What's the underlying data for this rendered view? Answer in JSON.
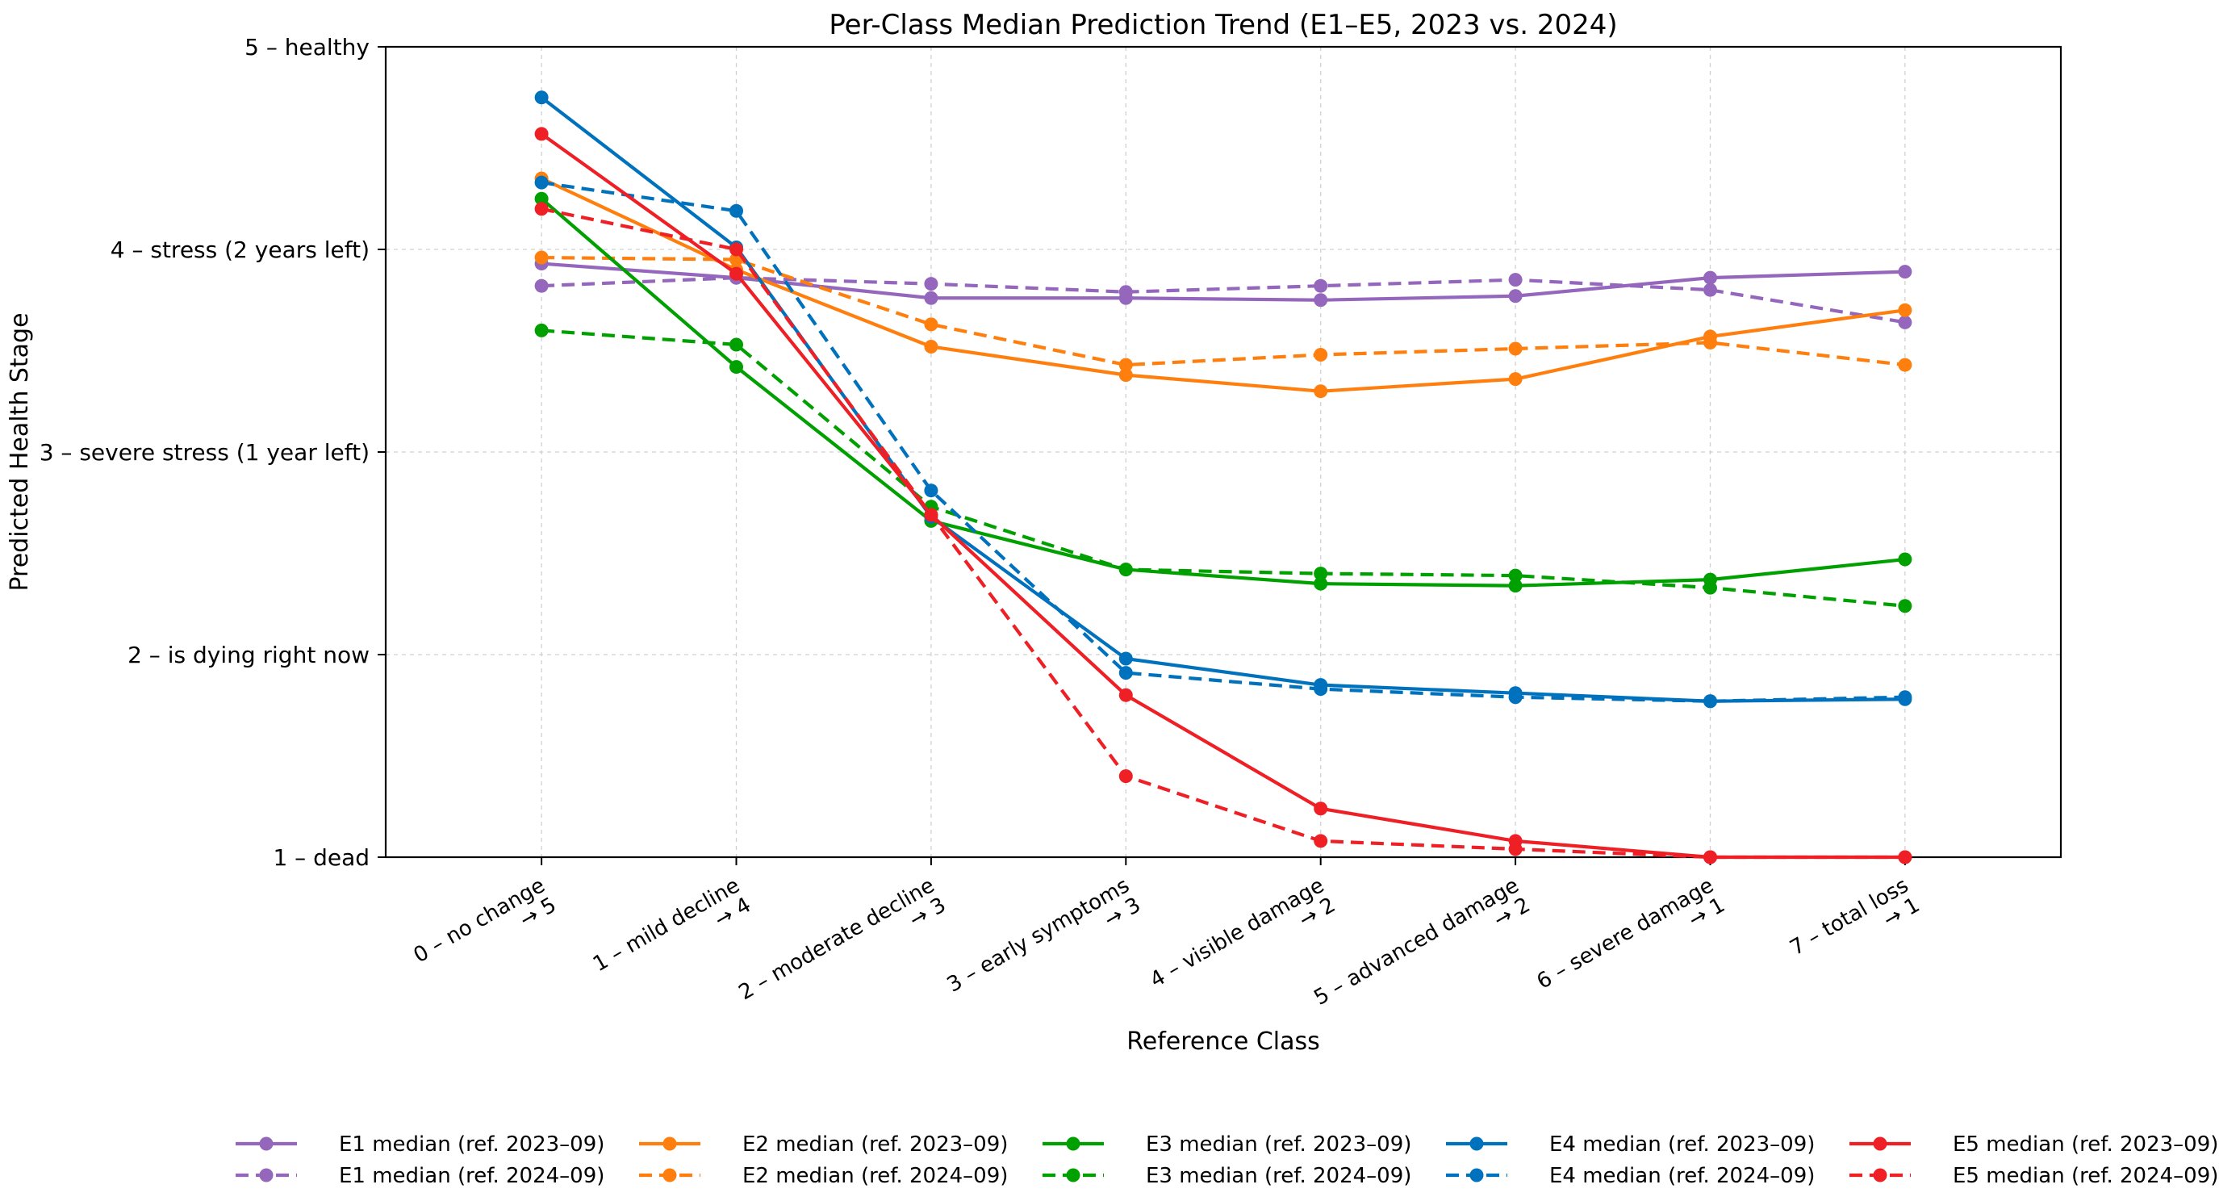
{
  "chart_data": {
    "type": "line",
    "title": "Per-Class Median Prediction Trend (E1–E5, 2023 vs. 2024)",
    "xlabel": "Reference Class",
    "ylabel": "Predicted Health Stage",
    "ylim": [
      1,
      5
    ],
    "grid": true,
    "legend_position": "bottom-center",
    "categories": [
      [
        "0 – no change",
        "→ 5"
      ],
      [
        "1 – mild decline",
        "→ 4"
      ],
      [
        "2 – moderate decline",
        "→ 3"
      ],
      [
        "3 – early symptoms",
        "→ 3"
      ],
      [
        "4 – visible damage",
        "→ 2"
      ],
      [
        "5 – advanced damage",
        "→ 2"
      ],
      [
        "6 – severe damage",
        "→ 1"
      ],
      [
        "7 – total loss",
        "→ 1"
      ]
    ],
    "y_ticks": [
      {
        "value": 1,
        "label": "1 – dead"
      },
      {
        "value": 2,
        "label": "2 – is dying right now"
      },
      {
        "value": 3,
        "label": "3 – severe stress (1 year left)"
      },
      {
        "value": 4,
        "label": "4 – stress (2 years left)"
      },
      {
        "value": 5,
        "label": "5 – healthy"
      }
    ],
    "series": [
      {
        "name": "E1 median (ref. 2023–09)",
        "color": "#9467bd",
        "style": "solid",
        "values": [
          3.93,
          3.86,
          3.76,
          3.76,
          3.75,
          3.77,
          3.86,
          3.89
        ]
      },
      {
        "name": "E1 median (ref. 2024–09)",
        "color": "#9467bd",
        "style": "dashed",
        "values": [
          3.82,
          3.86,
          3.83,
          3.79,
          3.82,
          3.85,
          3.8,
          3.64
        ]
      },
      {
        "name": "E2 median (ref. 2023–09)",
        "color": "#ff7f0e",
        "style": "solid",
        "values": [
          4.35,
          3.9,
          3.52,
          3.38,
          3.3,
          3.36,
          3.57,
          3.7
        ]
      },
      {
        "name": "E2 median (ref. 2024–09)",
        "color": "#ff7f0e",
        "style": "dashed",
        "values": [
          3.96,
          3.95,
          3.63,
          3.43,
          3.48,
          3.51,
          3.54,
          3.43
        ]
      },
      {
        "name": "E3 median (ref. 2023–09)",
        "color": "#00a000",
        "style": "solid",
        "values": [
          4.25,
          3.42,
          2.66,
          2.42,
          2.35,
          2.34,
          2.37,
          2.47
        ]
      },
      {
        "name": "E3 median (ref. 2024–09)",
        "color": "#00a000",
        "style": "dashed",
        "values": [
          3.6,
          3.53,
          2.73,
          2.42,
          2.4,
          2.39,
          2.33,
          2.24
        ]
      },
      {
        "name": "E4 median (ref. 2023–09)",
        "color": "#0072bd",
        "style": "solid",
        "values": [
          4.75,
          4.01,
          2.68,
          1.98,
          1.85,
          1.81,
          1.77,
          1.78
        ]
      },
      {
        "name": "E4 median (ref. 2024–09)",
        "color": "#0072bd",
        "style": "dashed",
        "values": [
          4.33,
          4.19,
          2.81,
          1.91,
          1.83,
          1.79,
          1.77,
          1.79
        ]
      },
      {
        "name": "E5 median (ref. 2023–09)",
        "color": "#ee1f25",
        "style": "solid",
        "values": [
          4.57,
          3.88,
          2.69,
          1.8,
          1.24,
          1.08,
          1.0,
          1.0
        ]
      },
      {
        "name": "E5 median (ref. 2024–09)",
        "color": "#ee1f25",
        "style": "dashed",
        "values": [
          4.2,
          4.0,
          2.69,
          1.4,
          1.08,
          1.04,
          1.0,
          1.0
        ]
      }
    ]
  }
}
